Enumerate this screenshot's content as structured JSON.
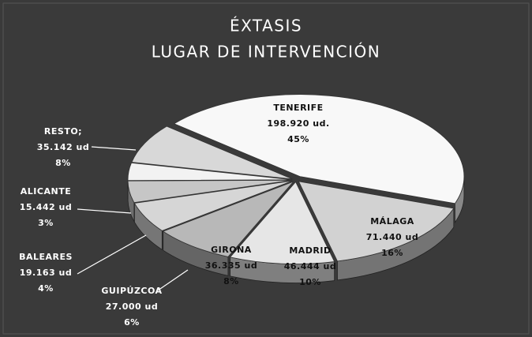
{
  "chart_data": {
    "type": "pie",
    "title": "ÉXTASIS",
    "subtitle": "LUGAR DE INTERVENCIÓN",
    "categories": [
      "TENERIFE",
      "MÁLAGA",
      "MADRID",
      "GIRONA",
      "GUIPÚZCOA",
      "BALEARES",
      "ALICANTE",
      "RESTO;"
    ],
    "values": [
      198920,
      71440,
      46444,
      36335,
      27000,
      19163,
      15442,
      35142
    ],
    "value_labels": [
      "198.920 ud.",
      "71.440 ud",
      "46.444 ud",
      "36.335 ud",
      "27.000 ud",
      "19.163 ud",
      "15.442 ud",
      "35.142 ud"
    ],
    "percentages": [
      45,
      16,
      10,
      8,
      6,
      4,
      3,
      8
    ],
    "percentage_labels": [
      "45%",
      "16%",
      "10%",
      "8%",
      "6%",
      "4%",
      "3%",
      "8%"
    ],
    "colors": [
      "#f8f8f8",
      "#d2d2d2",
      "#e6e6e6",
      "#b8b8b8",
      "#d6d6d6",
      "#c6c6c6",
      "#f2f2f2",
      "#d8d8d8"
    ]
  }
}
